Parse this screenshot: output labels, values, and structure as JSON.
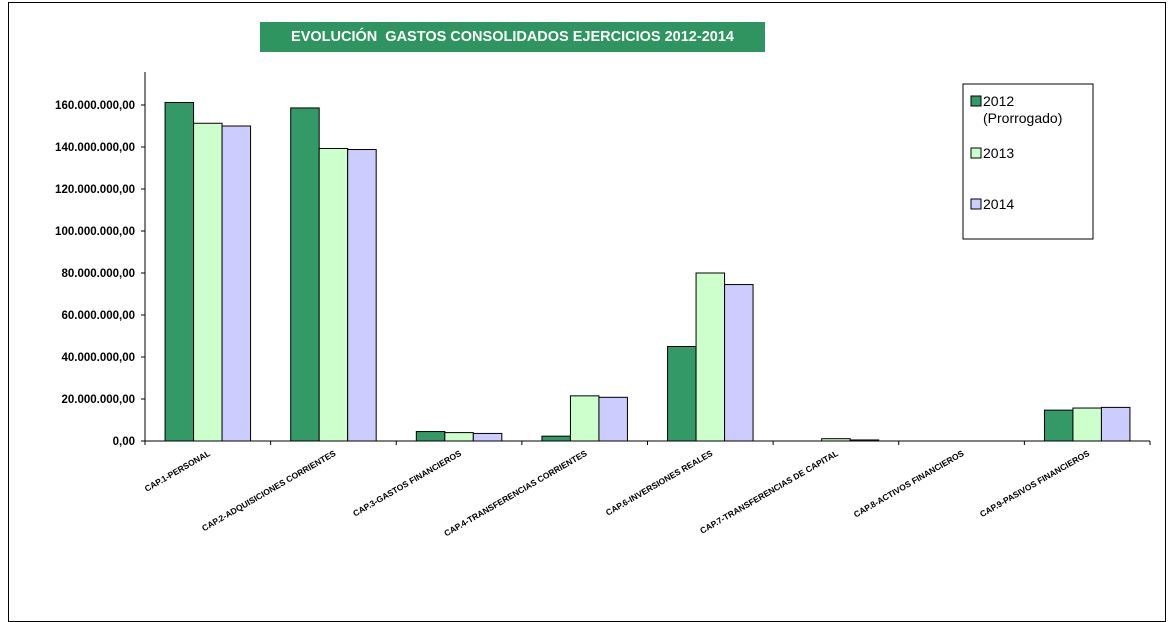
{
  "chart_data": {
    "type": "bar",
    "title": "EVOLUCIÓN  GASTOS CONSOLIDADOS EJERCICIOS 2012-2014",
    "categories": [
      "CAP.1-PERSONAL",
      "CAP.2-ADQUISICIONES CORRIENTES",
      "CAP.3-GASTOS FINANCIEROS",
      "CAP.4-TRANSFERENCIAS CORRIENTES",
      "CAP.6-INVERSIONES REALES",
      "CAP.7-TRANSFERENCIAS DE CAPITAL",
      "CAP.8-ACTIVOS FINANCIEROS",
      "CAP.9-PASIVOS FINANCIEROS"
    ],
    "series": [
      {
        "name": "2012 (Prorrogado)",
        "legend_lines": [
          "2012",
          "(Prorrogado)"
        ],
        "color": "#339966",
        "values": [
          161200000,
          158600000,
          4500000,
          2300000,
          45000000,
          0,
          0,
          14700000
        ]
      },
      {
        "name": "2013",
        "legend_lines": [
          "2013"
        ],
        "color": "#ccffcc",
        "values": [
          151300000,
          139300000,
          4000000,
          21500000,
          80000000,
          1100000,
          0,
          15700000
        ]
      },
      {
        "name": "2014",
        "legend_lines": [
          "2014"
        ],
        "color": "#ccccff",
        "values": [
          150000000,
          138800000,
          3600000,
          20800000,
          74500000,
          500000,
          0,
          16000000
        ]
      }
    ],
    "yticks": [
      "0,00",
      "20.000.000,00",
      "40.000.000,00",
      "60.000.000,00",
      "80.000.000,00",
      "100.000.000,00",
      "120.000.000,00",
      "140.000.000,00",
      "160.000.000,00"
    ],
    "ylim": [
      0,
      160000000
    ],
    "grid": false,
    "legend_position": "top-right"
  }
}
